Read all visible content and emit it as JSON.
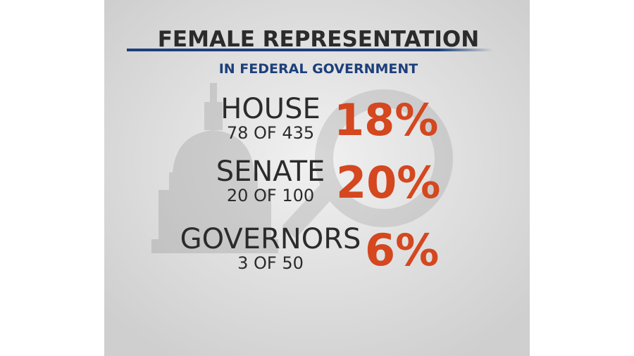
{
  "header": {
    "title": "FEMALE REPRESENTATION",
    "subtitle": "IN FEDERAL GOVERNMENT"
  },
  "rows": [
    {
      "label": "HOUSE",
      "detail": "78 OF 435",
      "percent": "18%"
    },
    {
      "label": "SENATE",
      "detail": "20 OF 100",
      "percent": "20%"
    },
    {
      "label": "GOVERNORS",
      "detail": "3 OF 50",
      "percent": "6%"
    }
  ]
}
